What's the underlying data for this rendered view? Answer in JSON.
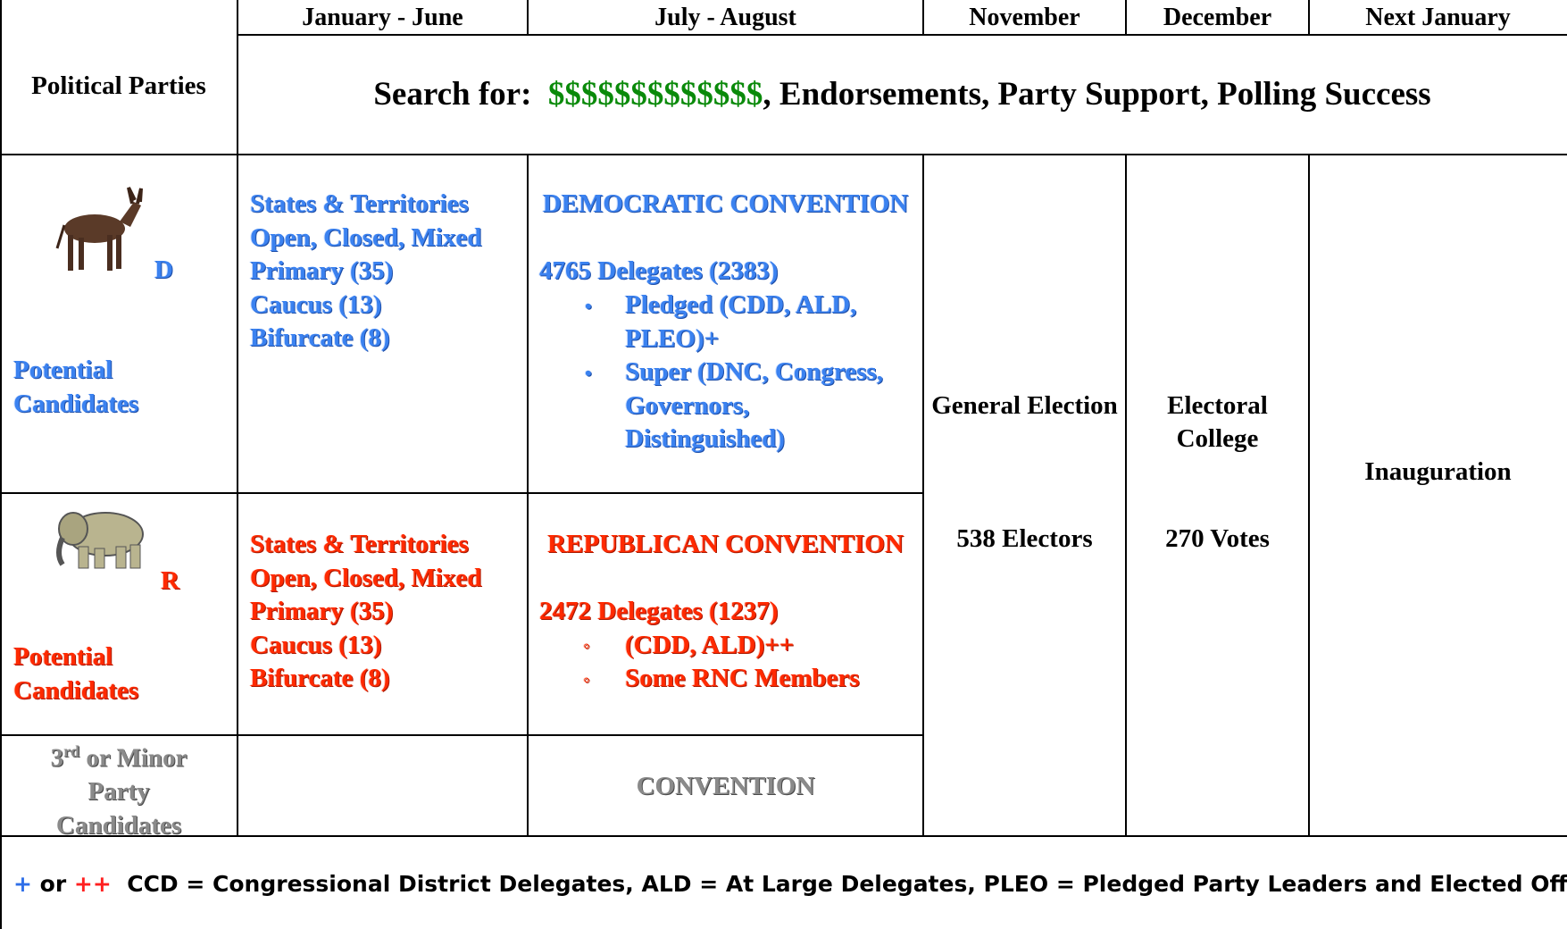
{
  "header": {
    "corner": "Political Parties",
    "columns": [
      "January - June",
      "July - August",
      "November",
      "December",
      "Next January"
    ],
    "search": {
      "label": "Search for:",
      "money": "$$$$$$$$$$$$$",
      "rest": ", Endorsements, Party Support, Polling Success"
    }
  },
  "democratic": {
    "letter": "D",
    "candidates": "Potential Candidates",
    "primaries": [
      "States & Territories",
      "Open, Closed, Mixed",
      "Primary (35)",
      "Caucus (13)",
      "Bifurcate (8)"
    ],
    "convention": "DEMOCRATIC CONVENTION",
    "delegates": "4765 Delegates (2383)",
    "bullets": [
      "Pledged (CDD, ALD, PLEO)+",
      "Super (DNC, Congress, Governors, Distinguished)"
    ]
  },
  "republican": {
    "letter": "R",
    "candidates": "Potential Candidates",
    "primaries": [
      "States & Territories",
      "Open, Closed, Mixed",
      "Primary (35)",
      "Caucus (13)",
      "Bifurcate (8)"
    ],
    "convention": "REPUBLICAN CONVENTION",
    "delegates": "2472 Delegates  (1237)",
    "bullets": [
      "(CDD, ALD)++",
      "Some RNC Members"
    ]
  },
  "minor": {
    "number": "3",
    "suffix": "rd",
    "label": "or Minor Party Candidates",
    "convention": "CONVENTION"
  },
  "general_election": {
    "title": "General Election",
    "detail": "538 Electors"
  },
  "electoral_college": {
    "title": "Electoral College",
    "detail": "270 Votes"
  },
  "inauguration": "Inauguration",
  "footer": {
    "plus": "+",
    "or": "or",
    "double_plus": "++",
    "text": "CCD = Congressional District Delegates, ALD = At Large Delegates, PLEO = Pledged Party Leaders and Elected Officials"
  }
}
